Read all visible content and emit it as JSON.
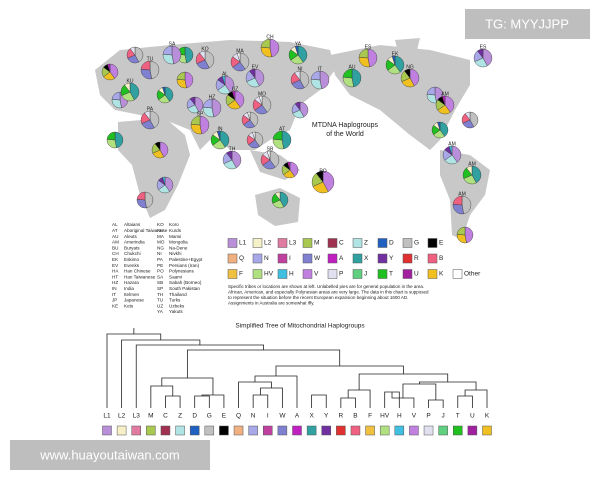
{
  "watermark": "TG: MYYJJPP",
  "site": "www.huayoutaiwan.com",
  "map": {
    "title": [
      "MTDNA Haplogroups",
      "of the World"
    ],
    "pies": [
      "SA",
      "KO",
      "YA",
      "ES",
      "ES",
      "MA",
      "AU",
      "NG",
      "AL",
      "TU",
      "KU",
      "UZ",
      "HZ",
      "PA",
      "IN",
      "SP",
      "TH",
      "SB",
      "AT",
      "PO",
      "AM",
      "AM",
      "AM",
      "AM",
      "IT",
      "NI",
      "EK",
      "CH",
      "EV",
      "MO"
    ]
  },
  "abbreviations": [
    {
      "code": "AL",
      "name": "Altaians"
    },
    {
      "code": "AT",
      "name": "Aboriginal Taiwanese"
    },
    {
      "code": "AU",
      "name": "Aleuts"
    },
    {
      "code": "AM",
      "name": "Amerindia"
    },
    {
      "code": "BU",
      "name": "Buryats"
    },
    {
      "code": "CH",
      "name": "Chukchi"
    },
    {
      "code": "EK",
      "name": "Eskimo"
    },
    {
      "code": "EV",
      "name": "Evenks"
    },
    {
      "code": "HA",
      "name": "Han Chinese"
    },
    {
      "code": "HT",
      "name": "Han Taiwanese"
    },
    {
      "code": "HZ",
      "name": "Hazara"
    },
    {
      "code": "IN",
      "name": "India"
    },
    {
      "code": "IT",
      "name": "Itelmen"
    },
    {
      "code": "JP",
      "name": "Japanese"
    },
    {
      "code": "KE",
      "name": "Kets"
    },
    {
      "code": "KO",
      "name": "Koro"
    },
    {
      "code": "KU",
      "name": "Kurds"
    },
    {
      "code": "MA",
      "name": "Mansi"
    },
    {
      "code": "MO",
      "name": "Mongolia"
    },
    {
      "code": "NG",
      "name": "Na-Dene"
    },
    {
      "code": "NI",
      "name": "Nivkhi"
    },
    {
      "code": "PA",
      "name": "Palestine+Egypt"
    },
    {
      "code": "PE",
      "name": "Persians (Iran)"
    },
    {
      "code": "PO",
      "name": "Polynesians"
    },
    {
      "code": "SA",
      "name": "Saami"
    },
    {
      "code": "SB",
      "name": "Sabah (Borneo)"
    },
    {
      "code": "SP",
      "name": "South Pakistan"
    },
    {
      "code": "TH",
      "name": "Thailand"
    },
    {
      "code": "TU",
      "name": "Turks"
    },
    {
      "code": "UZ",
      "name": "Uzbeks"
    },
    {
      "code": "YA",
      "name": "Yakuts"
    }
  ],
  "legend": [
    {
      "label": "L1",
      "color": "#b88fd8"
    },
    {
      "label": "L2",
      "color": "#f5f0c8"
    },
    {
      "label": "L3",
      "color": "#e07aa0"
    },
    {
      "label": "M",
      "color": "#a8c850"
    },
    {
      "label": "C",
      "color": "#a03050"
    },
    {
      "label": "Z",
      "color": "#b0e4e4"
    },
    {
      "label": "D",
      "color": "#2060c0"
    },
    {
      "label": "G",
      "color": "#c0c0c0"
    },
    {
      "label": "E",
      "color": "#000000"
    },
    {
      "label": "Q",
      "color": "#f0b080"
    },
    {
      "label": "N",
      "color": "#a8a8e8"
    },
    {
      "label": "I",
      "color": "#c040a0"
    },
    {
      "label": "W",
      "color": "#8080d0"
    },
    {
      "label": "A",
      "color": "#c020c0"
    },
    {
      "label": "X",
      "color": "#30a0a0"
    },
    {
      "label": "Y",
      "color": "#7030a0"
    },
    {
      "label": "R",
      "color": "#e03030"
    },
    {
      "label": "B",
      "color": "#f06080"
    },
    {
      "label": "F",
      "color": "#f0c040"
    },
    {
      "label": "HV",
      "color": "#b0e080"
    },
    {
      "label": "H",
      "color": "#40c0e0"
    },
    {
      "label": "V",
      "color": "#c080e0"
    },
    {
      "label": "P",
      "color": "#e0e0f0"
    },
    {
      "label": "J",
      "color": "#60d080"
    },
    {
      "label": "T",
      "color": "#20c020"
    },
    {
      "label": "U",
      "color": "#a020a0"
    },
    {
      "label": "K",
      "color": "#f0c020"
    },
    {
      "label": "Other",
      "color": "#ffffff"
    }
  ],
  "note": [
    "Specific tribes or locations are shown at left. Unlabelled pies are for general population in the area.",
    "African, American, and especially Polynesian areas are very large. The data in this chart is supposed",
    "to represent the situation before the recent European expansion beginning about 1600 AD.",
    "Assignments in Australia are somewhat iffy."
  ],
  "tree": {
    "title": "Simplified Tree of Mitochondrial Haplogroups",
    "leaves": [
      "L1",
      "L2",
      "L3",
      "M",
      "C",
      "Z",
      "D",
      "G",
      "E",
      "Q",
      "N",
      "I",
      "W",
      "A",
      "X",
      "Y",
      "R",
      "B",
      "F",
      "HV",
      "H",
      "V",
      "P",
      "J",
      "T",
      "U",
      "K"
    ]
  }
}
